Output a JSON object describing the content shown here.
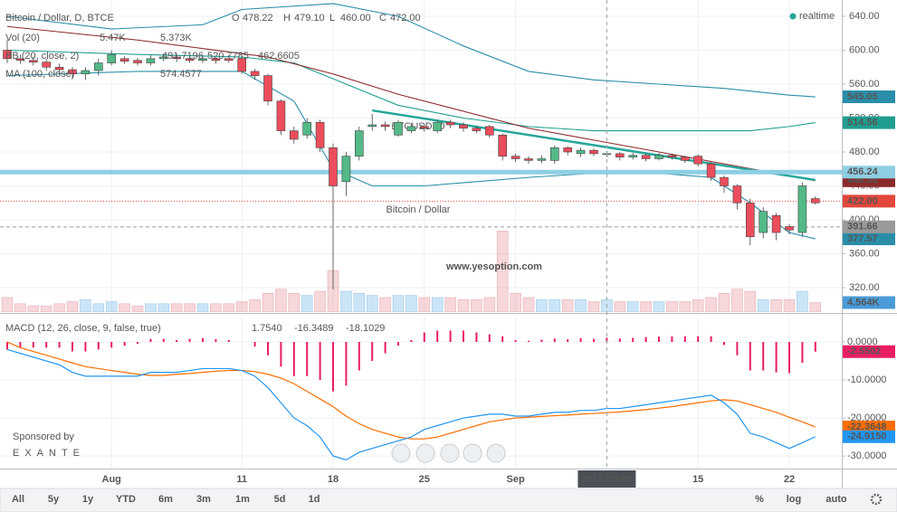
{
  "chart_data": [
    {
      "type": "candlestick",
      "title": "Bitcoin / Dollar, D, BTCE",
      "ohlc_header": [
        [
          "O",
          "478.22"
        ],
        [
          "H",
          "479.10"
        ],
        [
          "L",
          "460.00"
        ],
        [
          "C",
          "472.00"
        ]
      ],
      "legend": [
        {
          "label": "Vol (20)",
          "values": [
            "5.47K",
            "5.373K"
          ],
          "colors": [
            "#c0392b",
            "#2a7fc1"
          ]
        },
        {
          "label": "BB (20, close, 2)",
          "values": [
            "491.7196",
            "520.7785",
            "462.6605"
          ],
          "colors": [
            "#c0392b",
            "#2a8ea9",
            "#2a8ea9"
          ]
        },
        {
          "label": "MA (100, close)",
          "values": [
            "574.4577"
          ],
          "colors": [
            "#2a8ea9"
          ]
        }
      ],
      "watermark": [
        "BTCUSD, D",
        "Bitcoin / Dollar"
      ],
      "annotation": "www.yesoption.com",
      "realtime": "realtime",
      "sponsor": [
        "Sponsored by",
        "EXANTE"
      ],
      "highlight_category": "2014-09-08",
      "categories": [
        null,
        null,
        null,
        null,
        null,
        null,
        null,
        null,
        "Aug",
        null,
        null,
        null,
        null,
        null,
        null,
        null,
        null,
        null,
        "11",
        null,
        null,
        null,
        null,
        null,
        null,
        "18",
        null,
        null,
        null,
        null,
        null,
        null,
        "25",
        null,
        null,
        null,
        null,
        null,
        null,
        "Sep",
        null,
        null,
        null,
        null,
        null,
        null,
        "2014-09-08",
        null,
        null,
        null,
        null,
        null,
        null,
        "15",
        null,
        null,
        null,
        null,
        null,
        null,
        "22",
        null,
        null
      ],
      "open": [
        600,
        590,
        588,
        586,
        580,
        577,
        572,
        576,
        585,
        590,
        588,
        585,
        590,
        592,
        590,
        588,
        590,
        590,
        590,
        575,
        570,
        540,
        505,
        500,
        515,
        485,
        445,
        475,
        510,
        512,
        500,
        505,
        510,
        505,
        515,
        512,
        508,
        510,
        500,
        475,
        472,
        470,
        470,
        485,
        478,
        482,
        478,
        478,
        474,
        476,
        472,
        476,
        474,
        475,
        466,
        450,
        440,
        420,
        385,
        405,
        392,
        385,
        425
      ],
      "high": [
        612,
        595,
        592,
        590,
        584,
        580,
        580,
        590,
        600,
        593,
        591,
        594,
        596,
        595,
        593,
        594,
        592,
        594,
        592,
        578,
        572,
        542,
        510,
        520,
        518,
        490,
        480,
        510,
        525,
        516,
        518,
        514,
        513,
        518,
        518,
        515,
        511,
        512,
        502,
        478,
        475,
        476,
        488,
        487,
        485,
        484,
        481,
        480,
        479,
        478,
        479,
        478,
        476,
        477,
        468,
        452,
        442,
        425,
        415,
        408,
        395,
        444,
        428
      ],
      "low": [
        585,
        584,
        582,
        576,
        572,
        566,
        565,
        570,
        582,
        584,
        582,
        582,
        587,
        586,
        585,
        585,
        584,
        585,
        572,
        565,
        535,
        500,
        490,
        496,
        480,
        318,
        428,
        470,
        505,
        505,
        498,
        502,
        504,
        502,
        508,
        504,
        502,
        497,
        470,
        468,
        466,
        467,
        466,
        476,
        474,
        475,
        474,
        470,
        471,
        469,
        470,
        471,
        467,
        463,
        446,
        432,
        412,
        370,
        378,
        376,
        383,
        380,
        418
      ],
      "close": [
        590,
        588,
        586,
        580,
        577,
        572,
        576,
        585,
        595,
        587,
        585,
        590,
        592,
        590,
        588,
        590,
        588,
        588,
        575,
        570,
        540,
        505,
        495,
        515,
        485,
        440,
        475,
        505,
        512,
        510,
        515,
        510,
        508,
        515,
        512,
        508,
        505,
        500,
        475,
        472,
        470,
        472,
        485,
        480,
        482,
        478,
        478,
        474,
        476,
        472,
        476,
        474,
        470,
        466,
        450,
        440,
        420,
        380,
        410,
        385,
        388,
        440,
        420
      ],
      "up_color": "#53b987",
      "down_color": "#eb4d5c",
      "ylim": [
        291.2,
        659.2
      ],
      "yticks": [
        {
          "value": 320,
          "label": "320.00"
        },
        {
          "value": 360,
          "label": "360.00"
        },
        {
          "value": 400,
          "label": "400.00"
        },
        {
          "value": 440,
          "label": "440.00"
        },
        {
          "value": 480,
          "label": "480.00"
        },
        {
          "value": 520,
          "label": "520.00"
        },
        {
          "value": 560,
          "label": "560.00"
        },
        {
          "value": 600,
          "label": "600.00"
        },
        {
          "value": 640,
          "label": "640.00"
        }
      ],
      "grid": true,
      "volume": {
        "values": [
          7,
          4,
          3,
          3,
          4,
          5,
          6,
          4,
          5,
          4,
          3,
          4,
          4,
          4,
          4,
          4,
          4,
          4,
          5,
          6,
          9,
          11,
          9,
          8,
          10,
          20,
          10,
          9,
          8,
          7,
          8,
          8,
          7,
          7,
          7,
          6,
          6,
          7,
          39,
          9,
          7,
          6,
          6,
          6,
          6,
          5,
          6,
          5,
          5,
          5,
          5,
          5,
          5,
          6,
          7,
          9,
          11,
          10,
          6,
          6,
          6,
          10,
          4.564
        ],
        "ylim": [
          0,
          150
        ],
        "last_label": "4.564K",
        "label_color": "#4a9bd8"
      },
      "overlays": [
        {
          "x": [
            0,
            8,
            15,
            18,
            25,
            30,
            35,
            40,
            45,
            50,
            55,
            60,
            62
          ],
          "values": [
            640,
            625,
            630,
            648,
            655,
            640,
            605,
            575,
            565,
            560,
            555,
            547,
            545.05
          ],
          "color": "#2a8ea9",
          "last_label": "545.05"
        },
        {
          "x": [
            0,
            10,
            18,
            22,
            26,
            30,
            35,
            40,
            45,
            50,
            54,
            57,
            60,
            62
          ],
          "values": [
            600,
            595,
            592,
            585,
            560,
            535,
            520,
            510,
            505,
            505,
            505,
            505,
            510,
            514.56
          ],
          "color": "#1f9e8f",
          "last_label": "514.56"
        },
        {
          "x": [
            0,
            10,
            18,
            22,
            25,
            28,
            32,
            36,
            40,
            45,
            50,
            54,
            57,
            60,
            62
          ],
          "values": [
            570,
            575,
            575,
            540,
            460,
            440,
            440,
            445,
            450,
            455,
            455,
            450,
            420,
            385,
            377.57
          ],
          "color": "#2a8ea9",
          "last_label": "377.57"
        },
        {
          "x": [
            0,
            10,
            20,
            25,
            30,
            35,
            40,
            45,
            50,
            55,
            60,
            62
          ],
          "values": [
            628,
            612,
            592,
            572,
            548,
            528,
            508,
            494,
            480,
            466,
            452,
            446.06
          ],
          "color": "#8b2a2a",
          "last_label": "446.06"
        },
        {
          "x": [
            28,
            62
          ],
          "values": [
            529,
            447
          ],
          "color": "#26a69a",
          "style": "bold"
        }
      ],
      "levels": [
        {
          "value": 456.24,
          "label": "456.24",
          "color": "#8ecfe3",
          "style": "band"
        },
        {
          "value": 422,
          "label": "422.00",
          "color": "#e3473b",
          "style": "dotted"
        },
        {
          "value": 391.66,
          "label": "391.66",
          "color": "#9a9a9a",
          "style": "dashed"
        }
      ]
    },
    {
      "type": "macd",
      "title": "MACD (12, 26, close, 9, false, true)",
      "header_values": [
        "1.7540",
        "-16.3489",
        "-18.1029"
      ],
      "header_colors": [
        "#e91e63",
        "#2196f3",
        "#ff6d00"
      ],
      "ylim": [
        -33.3,
        7.14
      ],
      "yticks": [
        {
          "value": 0,
          "label": "0.0000"
        },
        {
          "value": -10,
          "label": "-10.0000"
        },
        {
          "value": -20,
          "label": "-20.0000"
        },
        {
          "value": -30,
          "label": "-30.0000"
        }
      ],
      "series": [
        {
          "kind": "histogram",
          "color": "#e91e63",
          "last_label": "-2.5502",
          "values": [
            -2,
            -1.5,
            -1.5,
            -1.5,
            -1.5,
            -2.5,
            -2.5,
            -2,
            -1.5,
            -1,
            -0.5,
            0.8,
            0.8,
            0.5,
            0.8,
            1,
            0.7,
            0.5,
            0,
            -1.2,
            -3.5,
            -6.5,
            -9,
            -9,
            -10,
            -13,
            -11.5,
            -7.5,
            -5,
            -3,
            -1,
            0.5,
            2.5,
            3,
            3,
            3,
            2.5,
            2,
            1.5,
            0.5,
            0.3,
            0.6,
            0.9,
            0.7,
            1,
            0.8,
            1.1,
            0.9,
            1.1,
            1.3,
            1.4,
            1.5,
            1.5,
            1.5,
            1.5,
            -0.8,
            -3.5,
            -7.5,
            -7.5,
            -8,
            -8.2,
            -5.5,
            -2.5502
          ]
        },
        {
          "kind": "line",
          "color": "#ff6d00",
          "last_label": "-22.3648",
          "values": [
            0,
            -1.5,
            -2.5,
            -3.5,
            -4.5,
            -5.5,
            -6.5,
            -7,
            -7.5,
            -8,
            -8.5,
            -8.8,
            -8.8,
            -8.5,
            -8.3,
            -8,
            -7.7,
            -7.5,
            -7.5,
            -7.8,
            -8.5,
            -9.5,
            -11,
            -13,
            -15,
            -17,
            -19.5,
            -21.5,
            -23,
            -24,
            -25,
            -25.5,
            -25.5,
            -25,
            -24,
            -23,
            -22,
            -21,
            -20.5,
            -20,
            -19.8,
            -19.6,
            -19.4,
            -19.2,
            -19,
            -18.8,
            -18.6,
            -18.4,
            -18.1,
            -17.8,
            -17.4,
            -17,
            -16.5,
            -16,
            -15.5,
            -15.2,
            -15.5,
            -16.5,
            -17.5,
            -18.5,
            -19.8,
            -21,
            -22.3648
          ]
        },
        {
          "kind": "line",
          "color": "#2196f3",
          "last_label": "-24.9150",
          "values": [
            -2,
            -3,
            -4,
            -5,
            -6,
            -8,
            -9,
            -9,
            -9,
            -9,
            -9,
            -8,
            -8,
            -8,
            -7.5,
            -7,
            -7,
            -7,
            -7.5,
            -9,
            -12,
            -16,
            -20,
            -22,
            -25,
            -30,
            -31,
            -29,
            -28,
            -27,
            -26,
            -25,
            -23,
            -22,
            -21,
            -20,
            -19.5,
            -19,
            -19,
            -19.5,
            -19.5,
            -19,
            -18.5,
            -18.5,
            -18,
            -18,
            -17.5,
            -17.5,
            -17,
            -16.5,
            -16,
            -15.5,
            -15,
            -14.5,
            -14,
            -16,
            -19,
            -24,
            -25,
            -26.5,
            -28,
            -26.5,
            -24.915
          ]
        }
      ]
    }
  ],
  "toolbar": {
    "ranges": [
      "All",
      "5y",
      "1y",
      "YTD",
      "6m",
      "3m",
      "1m",
      "5d",
      "1d"
    ],
    "options": [
      "%",
      "log",
      "auto"
    ]
  }
}
